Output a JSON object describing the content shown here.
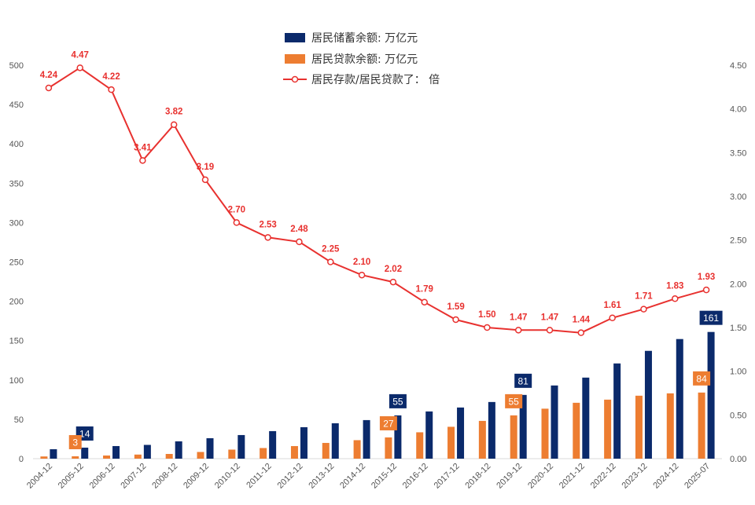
{
  "chart_data": {
    "type": "bar+line",
    "categories": [
      "2004-12",
      "2005-12",
      "2006-12",
      "2007-12",
      "2008-12",
      "2009-12",
      "2010-12",
      "2011-12",
      "2012-12",
      "2013-12",
      "2014-12",
      "2015-12",
      "2016-12",
      "2017-12",
      "2018-12",
      "2019-12",
      "2020-12",
      "2021-12",
      "2022-12",
      "2023-12",
      "2024-12",
      "2025-07"
    ],
    "series": [
      {
        "name": "居民储蓄余额: 万亿元",
        "type": "bar",
        "axis": "left",
        "color": "#0b2a6b",
        "values": [
          12,
          14,
          16,
          17.5,
          22,
          26,
          30,
          35,
          40,
          45,
          49,
          55,
          60,
          65,
          72,
          81,
          93,
          103,
          121,
          137,
          152,
          161
        ],
        "labeled_indices": [
          1,
          11,
          15,
          21
        ]
      },
      {
        "name": "居民贷款余额: 万亿元",
        "type": "bar",
        "axis": "left",
        "color": "#ed7d31",
        "values": [
          2.8,
          3,
          4,
          5.2,
          6,
          8.5,
          11.5,
          13.5,
          16,
          20,
          23.5,
          27,
          33.5,
          40.5,
          48,
          55,
          63.5,
          71,
          75,
          80,
          83,
          84
        ],
        "labeled_indices": [
          1,
          11,
          15,
          21
        ]
      },
      {
        "name": "居民存款/居民贷款了： 倍",
        "type": "line",
        "axis": "right",
        "color": "#e8312f",
        "values": [
          4.24,
          4.47,
          4.22,
          3.41,
          3.82,
          3.19,
          2.7,
          2.53,
          2.48,
          2.25,
          2.1,
          2.02,
          1.79,
          1.59,
          1.5,
          1.47,
          1.47,
          1.44,
          1.61,
          1.71,
          1.83,
          1.93
        ],
        "labels": [
          "4.24",
          "4.47",
          "4.22",
          "3.41",
          "3.82",
          "3.19",
          "2.70",
          "2.53",
          "2.48",
          "2.25",
          "2.10",
          "2.02",
          "1.79",
          "1.59",
          "1.50",
          "1.47",
          "1.47",
          "1.44",
          "1.61",
          "1.71",
          "1.83",
          "1.93"
        ]
      }
    ],
    "bar_labels": {
      "savings": [
        "14",
        "55",
        "81",
        "161"
      ],
      "loans": [
        "3",
        "27",
        "55",
        "84"
      ]
    },
    "y_left": {
      "min": 0,
      "max": 500,
      "ticks": [
        "0",
        "50",
        "100",
        "150",
        "200",
        "250",
        "300",
        "350",
        "400",
        "450",
        "500"
      ]
    },
    "y_right": {
      "min": 0,
      "max": 4.5,
      "ticks": [
        "0.00",
        "0.50",
        "1.00",
        "1.50",
        "2.00",
        "2.50",
        "3.00",
        "3.50",
        "4.00",
        "4.50"
      ]
    },
    "legend_position": "top-center",
    "grid": false
  }
}
